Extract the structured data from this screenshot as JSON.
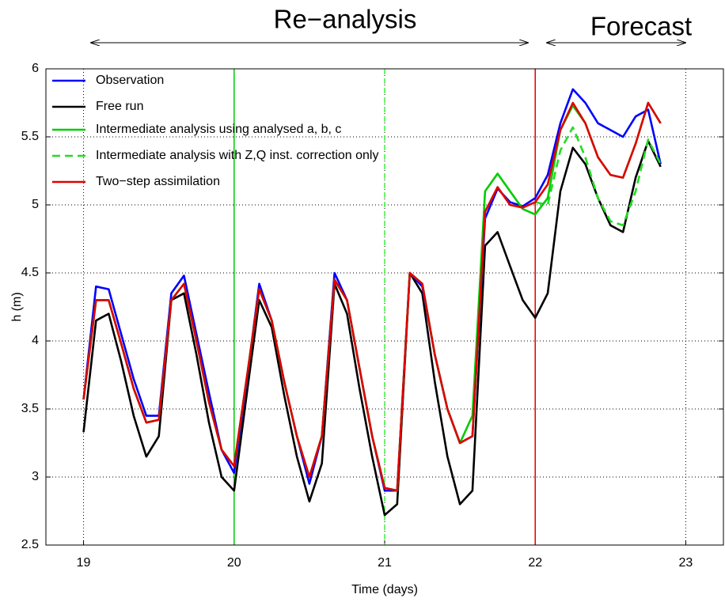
{
  "chart_data": {
    "type": "line",
    "x_label": "Time (days)",
    "y_label": "h (m)",
    "annotations": [
      "Re−analysis",
      "Forecast"
    ],
    "xlim": [
      18.75,
      23.25
    ],
    "ylim": [
      2.5,
      6
    ],
    "xticks": [
      19,
      20,
      21,
      22,
      23
    ],
    "yticks": [
      2.5,
      3,
      3.5,
      4,
      4.5,
      5,
      5.5,
      6
    ],
    "grid": true,
    "legend": "upper left",
    "vertical_lines": [
      {
        "x": 20,
        "color": "#00cc00",
        "dashed": false
      },
      {
        "x": 21,
        "color": "#44ee44",
        "dashed": true
      },
      {
        "x": 22,
        "color": "#e00000",
        "dashed": false
      }
    ],
    "x": [
      19.0,
      19.083,
      19.167,
      19.25,
      19.333,
      19.417,
      19.5,
      19.583,
      19.667,
      19.75,
      19.833,
      19.917,
      20.0,
      20.083,
      20.167,
      20.25,
      20.333,
      20.417,
      20.5,
      20.583,
      20.667,
      20.75,
      20.833,
      20.917,
      21.0,
      21.083,
      21.167,
      21.25,
      21.333,
      21.417,
      21.5,
      21.583,
      21.667,
      21.75,
      21.833,
      21.917,
      22.0,
      22.083,
      22.167,
      22.25,
      22.333,
      22.417,
      22.5,
      22.583,
      22.667,
      22.75,
      22.833
    ],
    "series": [
      {
        "name": "Observation",
        "color": "#0000ff",
        "dashed": false,
        "values": [
          3.57,
          4.4,
          4.38,
          4.05,
          3.72,
          3.45,
          3.45,
          4.35,
          4.48,
          4.05,
          3.62,
          3.2,
          3.03,
          3.7,
          4.42,
          4.15,
          3.7,
          3.3,
          2.95,
          3.3,
          4.5,
          4.3,
          3.8,
          3.3,
          2.9,
          2.9,
          4.5,
          4.4,
          3.9,
          3.5,
          3.25,
          3.3,
          4.9,
          5.12,
          5.02,
          4.99,
          5.05,
          5.22,
          5.6,
          5.85,
          5.75,
          5.6,
          5.55,
          5.5,
          5.65,
          5.7,
          5.3
        ]
      },
      {
        "name": "Free run",
        "color": "#000000",
        "dashed": false,
        "values": [
          3.33,
          4.15,
          4.2,
          3.85,
          3.45,
          3.15,
          3.3,
          4.3,
          4.35,
          3.9,
          3.4,
          3.0,
          2.9,
          3.6,
          4.3,
          4.1,
          3.6,
          3.15,
          2.82,
          3.1,
          4.42,
          4.2,
          3.65,
          3.15,
          2.72,
          2.8,
          4.5,
          4.35,
          3.7,
          3.15,
          2.8,
          2.9,
          4.7,
          4.8,
          4.55,
          4.3,
          4.17,
          4.35,
          5.1,
          5.42,
          5.3,
          5.05,
          4.85,
          4.8,
          5.2,
          5.47,
          5.28
        ]
      },
      {
        "name": "Intermediate analysis using analysed a, b, c",
        "color": "#00cc00",
        "dashed": false,
        "values": [
          3.57,
          4.3,
          4.3,
          3.98,
          3.65,
          3.4,
          3.42,
          4.3,
          4.42,
          4.0,
          3.55,
          3.2,
          3.08,
          3.72,
          4.38,
          4.15,
          3.7,
          3.3,
          3.0,
          3.3,
          4.45,
          4.3,
          3.8,
          3.3,
          2.92,
          2.9,
          4.5,
          4.42,
          3.9,
          3.5,
          3.25,
          3.45,
          5.1,
          5.23,
          5.1,
          4.97,
          4.93,
          5.05,
          5.55,
          5.73,
          5.6,
          5.35,
          5.22,
          5.2,
          5.45,
          5.75,
          5.6
        ]
      },
      {
        "name": "Intermediate analysis with Z,Q inst. correction only",
        "color": "#22dd22",
        "dashed": true,
        "values": [
          3.57,
          4.3,
          4.3,
          3.98,
          3.65,
          3.4,
          3.42,
          4.3,
          4.42,
          4.0,
          3.55,
          3.2,
          3.08,
          3.72,
          4.38,
          4.15,
          3.7,
          3.3,
          3.0,
          3.3,
          4.45,
          4.3,
          3.8,
          3.3,
          2.92,
          2.9,
          4.5,
          4.42,
          3.9,
          3.5,
          3.25,
          3.3,
          4.95,
          5.13,
          5.0,
          4.98,
          5.02,
          5.0,
          5.4,
          5.57,
          5.35,
          5.05,
          4.88,
          4.85,
          5.1,
          5.48,
          5.3
        ]
      },
      {
        "name": "Two−step assimilation",
        "color": "#e00000",
        "dashed": false,
        "values": [
          3.57,
          4.3,
          4.3,
          3.98,
          3.65,
          3.4,
          3.42,
          4.3,
          4.42,
          4.0,
          3.55,
          3.2,
          3.08,
          3.72,
          4.38,
          4.15,
          3.7,
          3.3,
          3.0,
          3.3,
          4.45,
          4.3,
          3.8,
          3.3,
          2.92,
          2.9,
          4.5,
          4.42,
          3.9,
          3.5,
          3.25,
          3.3,
          4.95,
          5.13,
          5.0,
          4.98,
          5.02,
          5.15,
          5.55,
          5.75,
          5.6,
          5.35,
          5.22,
          5.2,
          5.45,
          5.75,
          5.6
        ]
      }
    ]
  }
}
